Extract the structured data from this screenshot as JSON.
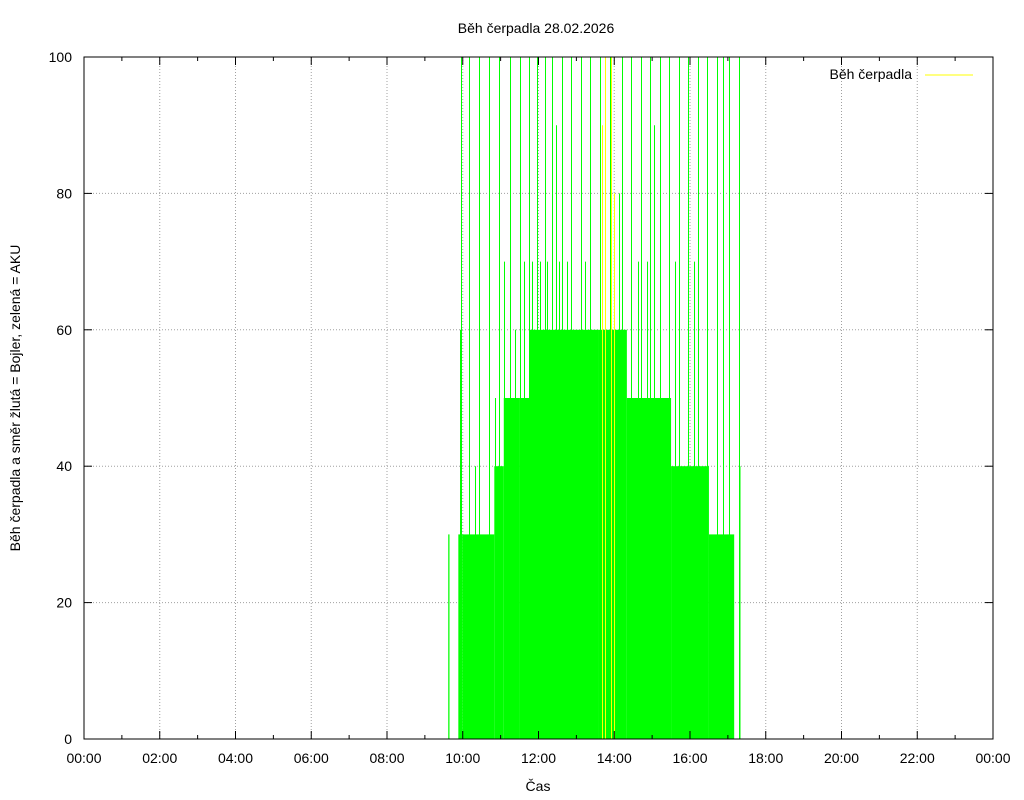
{
  "chart_data": {
    "type": "line",
    "title": "Běh čerpadla 28.02.2026",
    "xlabel": "Čas",
    "ylabel": "Běh čerpadla a směr žlutá = Bojler, zelená = AKU",
    "xlim": [
      "00:00",
      "24:00"
    ],
    "ylim": [
      0,
      100
    ],
    "x_ticks": [
      "00:00",
      "02:00",
      "04:00",
      "06:00",
      "08:00",
      "10:00",
      "12:00",
      "14:00",
      "16:00",
      "18:00",
      "20:00",
      "22:00",
      "00:00"
    ],
    "y_ticks": [
      0,
      20,
      40,
      60,
      80,
      100
    ],
    "grid": true,
    "legend": {
      "position": "top-right",
      "entries": [
        {
          "label": "Běh čerpadla",
          "color": "#ffff00"
        }
      ]
    },
    "series": [
      {
        "name": "Běh čerpadla",
        "color": "#00ff00",
        "direction": "AKU",
        "segments": [
          {
            "from": "09:37",
            "to": "09:39",
            "value": 30
          },
          {
            "from": "09:53",
            "to": "10:00",
            "value": 30
          },
          {
            "from": "10:00",
            "to": "10:50",
            "value": 30
          },
          {
            "from": "10:50",
            "to": "11:05",
            "value": 40
          },
          {
            "from": "11:05",
            "to": "11:30",
            "value": 50
          },
          {
            "from": "11:30",
            "to": "11:45",
            "value": 50
          },
          {
            "from": "11:45",
            "to": "13:35",
            "value": 60
          },
          {
            "from": "13:35",
            "to": "14:20",
            "value": 60
          },
          {
            "from": "14:20",
            "to": "15:30",
            "value": 50
          },
          {
            "from": "15:30",
            "to": "16:30",
            "value": 40
          },
          {
            "from": "16:30",
            "to": "17:10",
            "value": 30
          },
          {
            "from": "17:18",
            "to": "17:20",
            "value": 40
          }
        ],
        "spikes": [
          {
            "time": "09:55",
            "value": 60
          },
          {
            "time": "09:57",
            "value": 100
          },
          {
            "time": "10:10",
            "value": 100
          },
          {
            "time": "10:20",
            "value": 40
          },
          {
            "time": "10:25",
            "value": 100
          },
          {
            "time": "10:42",
            "value": 100
          },
          {
            "time": "10:51",
            "value": 50
          },
          {
            "time": "10:58",
            "value": 100
          },
          {
            "time": "11:05",
            "value": 70
          },
          {
            "time": "11:15",
            "value": 100
          },
          {
            "time": "11:22",
            "value": 60
          },
          {
            "time": "11:30",
            "value": 100
          },
          {
            "time": "11:37",
            "value": 70
          },
          {
            "time": "11:45",
            "value": 100
          },
          {
            "time": "11:50",
            "value": 70
          },
          {
            "time": "11:57",
            "value": 100
          },
          {
            "time": "12:03",
            "value": 70
          },
          {
            "time": "12:10",
            "value": 100
          },
          {
            "time": "12:14",
            "value": 70
          },
          {
            "time": "12:22",
            "value": 100
          },
          {
            "time": "12:27",
            "value": 90
          },
          {
            "time": "12:32",
            "value": 70
          },
          {
            "time": "12:38",
            "value": 100
          },
          {
            "time": "12:45",
            "value": 70
          },
          {
            "time": "12:52",
            "value": 100
          },
          {
            "time": "13:07",
            "value": 100
          },
          {
            "time": "13:13",
            "value": 70
          },
          {
            "time": "13:22",
            "value": 100
          },
          {
            "time": "13:37",
            "value": 100
          },
          {
            "time": "13:45",
            "value": 70
          },
          {
            "time": "13:53",
            "value": 100
          },
          {
            "time": "14:07",
            "value": 80
          },
          {
            "time": "14:12",
            "value": 100
          },
          {
            "time": "14:27",
            "value": 100
          },
          {
            "time": "14:37",
            "value": 70
          },
          {
            "time": "14:42",
            "value": 100
          },
          {
            "time": "14:52",
            "value": 70
          },
          {
            "time": "14:57",
            "value": 100
          },
          {
            "time": "15:03",
            "value": 90
          },
          {
            "time": "15:12",
            "value": 100
          },
          {
            "time": "15:27",
            "value": 100
          },
          {
            "time": "15:37",
            "value": 70
          },
          {
            "time": "15:42",
            "value": 100
          },
          {
            "time": "15:57",
            "value": 100
          },
          {
            "time": "16:07",
            "value": 70
          },
          {
            "time": "16:12",
            "value": 100
          },
          {
            "time": "16:27",
            "value": 100
          },
          {
            "time": "16:42",
            "value": 100
          },
          {
            "time": "16:52",
            "value": 100
          },
          {
            "time": "17:02",
            "value": 100
          },
          {
            "time": "17:17",
            "value": 100
          }
        ]
      },
      {
        "name": "Běh čerpadla",
        "color": "#ffff00",
        "direction": "Bojler",
        "spikes": [
          {
            "time": "13:40",
            "value": 90
          },
          {
            "time": "13:45",
            "value": 100
          },
          {
            "time": "13:55",
            "value": 100
          },
          {
            "time": "14:00",
            "value": 80
          }
        ]
      }
    ]
  }
}
